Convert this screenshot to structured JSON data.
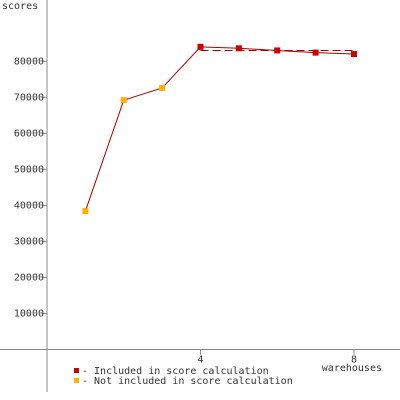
{
  "chart_data": {
    "type": "line",
    "ylabel": "scores",
    "xlabel": "warehouses",
    "series": [
      {
        "name": "- Included in score calculation",
        "color": "#cc0000",
        "x": [
          4,
          5,
          6,
          7,
          8
        ],
        "values": [
          84000,
          83600,
          83000,
          82400,
          82000
        ]
      },
      {
        "name": "- Not included in score calculation",
        "color": "#ffb000",
        "x": [
          1,
          2,
          3
        ],
        "values": [
          38400,
          69200,
          72600
        ]
      }
    ],
    "line_color": "#aa0000",
    "score_line": {
      "x": [
        4,
        8
      ],
      "value": 83000
    },
    "xlim": [
      0,
      9.2
    ],
    "xticks": [
      4,
      8
    ],
    "ylim": [
      -14000,
      97000
    ],
    "yticks": [
      10000,
      20000,
      30000,
      40000,
      50000,
      60000,
      70000,
      80000
    ]
  }
}
